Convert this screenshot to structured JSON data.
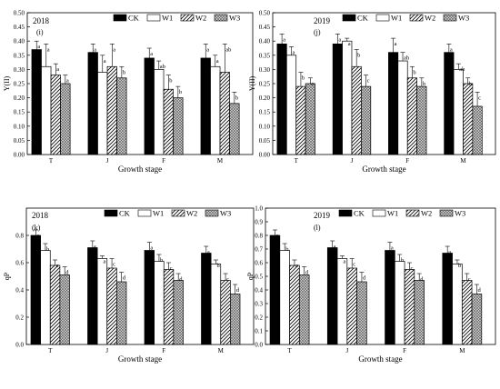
{
  "legend_labels": [
    "CK",
    "W1",
    "W2",
    "W3"
  ],
  "chart_data": [
    {
      "type": "bar",
      "year": "2018",
      "panel": "(i)",
      "ylabel": "Y(II)",
      "xlabel": "Growth stage",
      "categories": [
        "T",
        "J",
        "F",
        "M"
      ],
      "ylim": [
        0.0,
        0.5
      ],
      "yticks": [
        "0.00",
        "0.05",
        "0.10",
        "0.15",
        "0.20",
        "0.25",
        "0.30",
        "0.35",
        "0.40",
        "0.45",
        "0.50"
      ],
      "series": [
        {
          "name": "CK",
          "values": [
            0.37,
            0.36,
            0.34,
            0.34
          ],
          "err": [
            0.03,
            0.03,
            0.035,
            0.05
          ],
          "letters": [
            "a",
            "a",
            "a",
            "a"
          ]
        },
        {
          "name": "W1",
          "values": [
            0.31,
            0.29,
            0.3,
            0.31
          ],
          "err": [
            0.08,
            0.06,
            0.03,
            0.04
          ],
          "letters": [
            "a",
            "a",
            "ab",
            "a"
          ]
        },
        {
          "name": "W2",
          "values": [
            0.28,
            0.31,
            0.23,
            0.29
          ],
          "err": [
            0.04,
            0.08,
            0.05,
            0.1
          ],
          "letters": [
            "a",
            "a",
            "b",
            "ab"
          ]
        },
        {
          "name": "W3",
          "values": [
            0.25,
            0.27,
            0.2,
            0.18
          ],
          "err": [
            0.03,
            0.04,
            0.04,
            0.04
          ],
          "letters": [
            "a",
            "b",
            "b",
            "b"
          ]
        }
      ]
    },
    {
      "type": "bar",
      "year": "2019",
      "panel": "(j)",
      "ylabel": "Y(II)",
      "xlabel": "Growth stage",
      "categories": [
        "T",
        "J",
        "F",
        "M"
      ],
      "ylim": [
        0.0,
        0.5
      ],
      "yticks": [
        "0.00",
        "0.05",
        "0.10",
        "0.15",
        "0.20",
        "0.25",
        "0.30",
        "0.35",
        "0.40",
        "0.45",
        "0.50"
      ],
      "series": [
        {
          "name": "CK",
          "values": [
            0.39,
            0.39,
            0.36,
            0.36
          ],
          "err": [
            0.035,
            0.035,
            0.05,
            0.03
          ],
          "letters": [
            "a",
            "a",
            "a",
            "a"
          ]
        },
        {
          "name": "W1",
          "values": [
            0.35,
            0.4,
            0.33,
            0.3
          ],
          "err": [
            0.03,
            0.01,
            0.03,
            0.02
          ],
          "letters": [
            "a",
            "a",
            "ab",
            "ab"
          ]
        },
        {
          "name": "W2",
          "values": [
            0.24,
            0.31,
            0.27,
            0.25
          ],
          "err": [
            0.05,
            0.06,
            0.04,
            0.02
          ],
          "letters": [
            "b",
            "b",
            "b",
            "b"
          ]
        },
        {
          "name": "W3",
          "values": [
            0.25,
            0.24,
            0.24,
            0.17
          ],
          "err": [
            0.02,
            0.04,
            0.03,
            0.05
          ],
          "letters": [
            "c",
            "c",
            "b",
            "c"
          ]
        }
      ]
    },
    {
      "type": "bar",
      "year": "2018",
      "panel": "(k)",
      "ylabel": "qP",
      "xlabel": "Growth stage",
      "categories": [
        "T",
        "J",
        "F",
        "M"
      ],
      "ylim": [
        0.0,
        1.0
      ],
      "yticks": [
        "0.0",
        "0.2",
        "0.4",
        "0.6",
        "0.8"
      ],
      "series": [
        {
          "name": "CK",
          "values": [
            0.8,
            0.71,
            0.69,
            0.67
          ],
          "err": [
            0.04,
            0.05,
            0.06,
            0.05
          ],
          "letters": [
            "a",
            "a",
            "a",
            "a"
          ]
        },
        {
          "name": "W1",
          "values": [
            0.69,
            0.63,
            0.61,
            0.59
          ],
          "err": [
            0.05,
            0.02,
            0.05,
            0.03
          ],
          "letters": [
            "b",
            "a",
            "b",
            "b"
          ]
        },
        {
          "name": "W2",
          "values": [
            0.58,
            0.56,
            0.55,
            0.47
          ],
          "err": [
            0.04,
            0.07,
            0.05,
            0.05
          ],
          "letters": [
            "c",
            "c",
            "c",
            "c"
          ]
        },
        {
          "name": "W3",
          "values": [
            0.51,
            0.46,
            0.47,
            0.37
          ],
          "err": [
            0.06,
            0.07,
            0.05,
            0.07
          ],
          "letters": [
            "d",
            "d",
            "d",
            "d"
          ]
        }
      ]
    },
    {
      "type": "bar",
      "year": "2019",
      "panel": "(l)",
      "ylabel": "qP",
      "xlabel": "Growth stage",
      "categories": [
        "T",
        "J",
        "F",
        "M"
      ],
      "ylim": [
        0.0,
        1.0
      ],
      "yticks": [
        "0.0",
        "0.1",
        "0.2",
        "0.3",
        "0.4",
        "0.5",
        "0.6",
        "0.7",
        "0.8",
        "0.9",
        "1.0"
      ],
      "series": [
        {
          "name": "CK",
          "values": [
            0.8,
            0.71,
            0.69,
            0.67
          ],
          "err": [
            0.04,
            0.05,
            0.06,
            0.05
          ],
          "letters": [
            "a",
            "a",
            "a",
            "a"
          ]
        },
        {
          "name": "W1",
          "values": [
            0.69,
            0.63,
            0.61,
            0.59
          ],
          "err": [
            0.05,
            0.02,
            0.05,
            0.03
          ],
          "letters": [
            "b",
            "a",
            "b",
            "b"
          ]
        },
        {
          "name": "W2",
          "values": [
            0.58,
            0.56,
            0.55,
            0.47
          ],
          "err": [
            0.04,
            0.07,
            0.05,
            0.05
          ],
          "letters": [
            "c",
            "c",
            "c",
            "c"
          ]
        },
        {
          "name": "W3",
          "values": [
            0.51,
            0.46,
            0.47,
            0.37
          ],
          "err": [
            0.06,
            0.07,
            0.05,
            0.07
          ],
          "letters": [
            "d",
            "d",
            "d",
            "d"
          ]
        }
      ]
    }
  ]
}
